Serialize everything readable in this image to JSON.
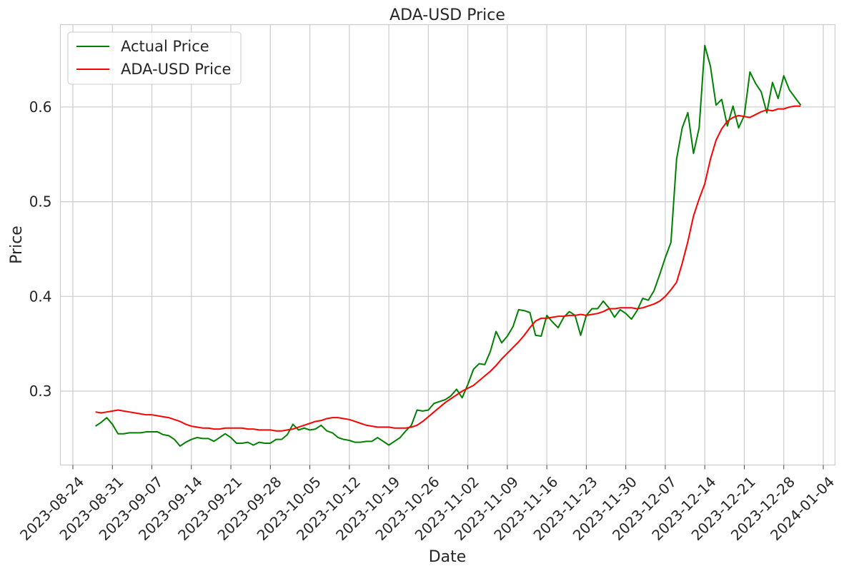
{
  "chart_data": {
    "type": "line",
    "title": "ADA-USD Price",
    "xlabel": "Date",
    "ylabel": "Price",
    "x_ticks": [
      "2023-08-24",
      "2023-08-31",
      "2023-09-07",
      "2023-09-14",
      "2023-09-21",
      "2023-09-28",
      "2023-10-05",
      "2023-10-12",
      "2023-10-19",
      "2023-10-26",
      "2023-11-02",
      "2023-11-09",
      "2023-11-16",
      "2023-11-23",
      "2023-11-30",
      "2023-12-07",
      "2023-12-14",
      "2023-12-21",
      "2023-12-28",
      "2024-01-04"
    ],
    "x_range": [
      "2023-08-24",
      "2024-01-04"
    ],
    "y_ticks": [
      0.3,
      0.4,
      0.5,
      0.6
    ],
    "ylim": [
      0.222,
      0.687
    ],
    "grid": true,
    "legend_position": "top-left",
    "x_start": "2023-08-28",
    "series": [
      {
        "name": "Actual Price",
        "color": "#008000",
        "values": [
          0.263,
          0.267,
          0.272,
          0.265,
          0.255,
          0.255,
          0.256,
          0.256,
          0.256,
          0.257,
          0.257,
          0.257,
          0.254,
          0.253,
          0.249,
          0.242,
          0.246,
          0.249,
          0.251,
          0.25,
          0.25,
          0.247,
          0.251,
          0.255,
          0.251,
          0.245,
          0.245,
          0.246,
          0.243,
          0.246,
          0.245,
          0.245,
          0.249,
          0.249,
          0.254,
          0.265,
          0.259,
          0.261,
          0.259,
          0.26,
          0.264,
          0.258,
          0.256,
          0.251,
          0.249,
          0.248,
          0.246,
          0.246,
          0.247,
          0.247,
          0.251,
          0.247,
          0.243,
          0.247,
          0.251,
          0.258,
          0.264,
          0.28,
          0.279,
          0.28,
          0.287,
          0.289,
          0.291,
          0.295,
          0.302,
          0.293,
          0.307,
          0.323,
          0.329,
          0.328,
          0.342,
          0.363,
          0.351,
          0.358,
          0.368,
          0.386,
          0.385,
          0.383,
          0.359,
          0.358,
          0.38,
          0.373,
          0.367,
          0.378,
          0.384,
          0.38,
          0.359,
          0.38,
          0.387,
          0.387,
          0.395,
          0.388,
          0.378,
          0.386,
          0.382,
          0.376,
          0.385,
          0.398,
          0.396,
          0.406,
          0.423,
          0.441,
          0.457,
          0.545,
          0.578,
          0.594,
          0.551,
          0.578,
          0.665,
          0.643,
          0.602,
          0.608,
          0.58,
          0.601,
          0.578,
          0.591,
          0.637,
          0.625,
          0.616,
          0.594,
          0.626,
          0.609,
          0.633,
          0.618,
          0.61,
          0.602
        ]
      },
      {
        "name": "ADA-USD Price",
        "color": "#ff0000",
        "values": [
          0.278,
          0.277,
          0.278,
          0.279,
          0.28,
          0.279,
          0.278,
          0.277,
          0.276,
          0.275,
          0.275,
          0.274,
          0.273,
          0.272,
          0.27,
          0.268,
          0.265,
          0.263,
          0.262,
          0.261,
          0.261,
          0.26,
          0.26,
          0.261,
          0.261,
          0.261,
          0.261,
          0.26,
          0.26,
          0.259,
          0.259,
          0.259,
          0.258,
          0.258,
          0.259,
          0.26,
          0.262,
          0.264,
          0.266,
          0.268,
          0.269,
          0.271,
          0.272,
          0.272,
          0.271,
          0.27,
          0.268,
          0.266,
          0.264,
          0.263,
          0.262,
          0.262,
          0.262,
          0.261,
          0.261,
          0.261,
          0.262,
          0.264,
          0.268,
          0.273,
          0.278,
          0.283,
          0.288,
          0.292,
          0.296,
          0.3,
          0.303,
          0.306,
          0.311,
          0.316,
          0.321,
          0.327,
          0.334,
          0.34,
          0.346,
          0.352,
          0.359,
          0.367,
          0.374,
          0.377,
          0.377,
          0.378,
          0.379,
          0.379,
          0.38,
          0.38,
          0.381,
          0.38,
          0.381,
          0.382,
          0.384,
          0.387,
          0.387,
          0.388,
          0.388,
          0.388,
          0.387,
          0.388,
          0.39,
          0.392,
          0.395,
          0.4,
          0.407,
          0.415,
          0.435,
          0.458,
          0.485,
          0.503,
          0.519,
          0.545,
          0.565,
          0.577,
          0.585,
          0.589,
          0.591,
          0.59,
          0.589,
          0.592,
          0.595,
          0.597,
          0.596,
          0.598,
          0.598,
          0.6,
          0.601,
          0.601
        ]
      }
    ]
  }
}
